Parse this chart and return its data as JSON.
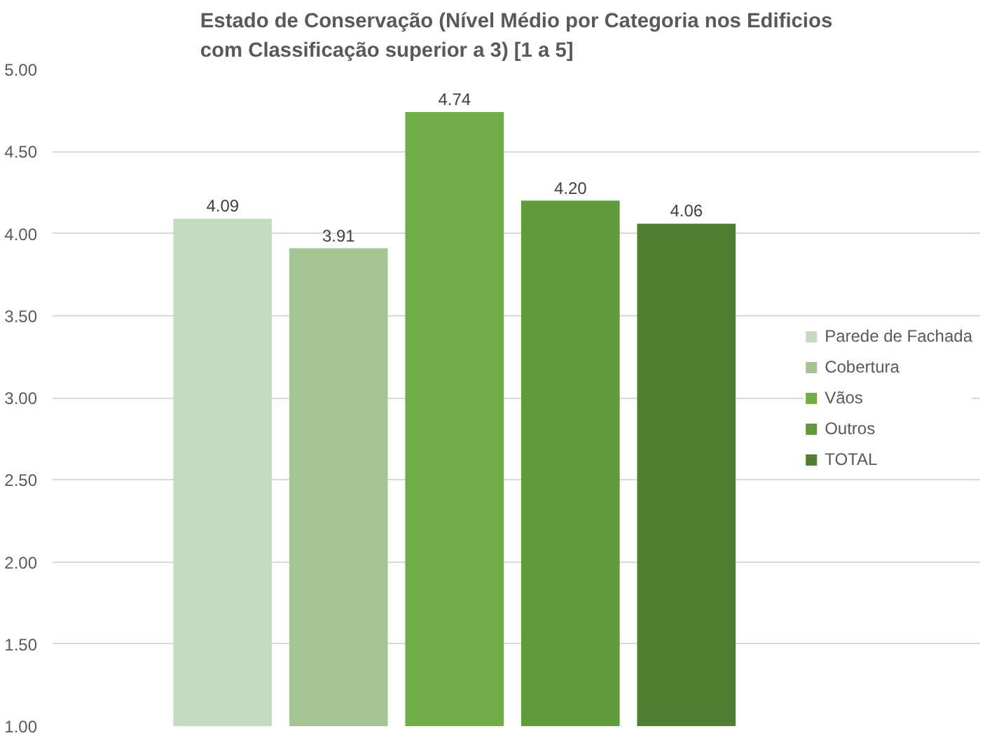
{
  "chart_data": {
    "type": "bar",
    "title": "Estado de Conservação (Nível Médio por Categoria nos Edificios\ncom Classificação superior a 3) [1 a 5]",
    "categories": [
      null
    ],
    "series": [
      {
        "name": "Parede de Fachada",
        "color": "#c5dbbf",
        "values": [
          4.09
        ],
        "value_labels": [
          "4.09"
        ]
      },
      {
        "name": "Cobertura",
        "color": "#a4c592",
        "values": [
          3.91
        ],
        "value_labels": [
          "3.91"
        ]
      },
      {
        "name": "Vãos",
        "color": "#70ad47",
        "values": [
          4.74
        ],
        "value_labels": [
          "4.74"
        ]
      },
      {
        "name": "Outros",
        "color": "#5f9b3d",
        "values": [
          4.2
        ],
        "value_labels": [
          "4.20"
        ]
      },
      {
        "name": "TOTAL",
        "color": "#507f32",
        "values": [
          4.06
        ],
        "value_labels": [
          "4.06"
        ]
      }
    ],
    "ylim": [
      1,
      5
    ],
    "yticks": [
      {
        "value": 1,
        "label": "1.00"
      },
      {
        "value": 1.5,
        "label": "1.50"
      },
      {
        "value": 2,
        "label": "2.00"
      },
      {
        "value": 2.5,
        "label": "2.50"
      },
      {
        "value": 3,
        "label": "3.00"
      },
      {
        "value": 3.5,
        "label": "3.50"
      },
      {
        "value": 4,
        "label": "4.00"
      },
      {
        "value": 4.5,
        "label": "4.50"
      },
      {
        "value": 5,
        "label": "5.00"
      }
    ],
    "grid": "y",
    "legend": "right"
  }
}
